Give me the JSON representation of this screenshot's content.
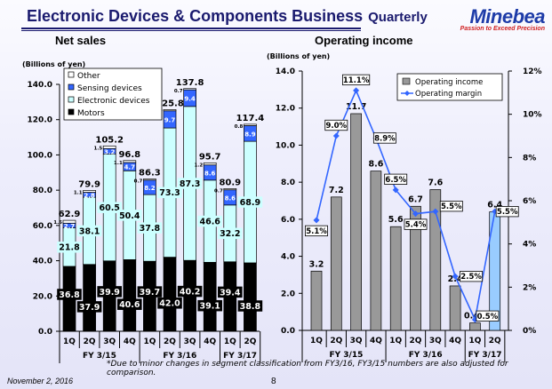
{
  "header": {
    "title": "Electronic Devices & Components Business",
    "title_suffix": "Quarterly",
    "logo_text": "Minebea",
    "logo_tagline": "Passion to Exceed Precision"
  },
  "footer": {
    "note": "*Due to minor changes in segment classification from FY3/16, FY3/15 numbers are also adjusted for comparison.",
    "date": "November 2, 2016",
    "page": "8"
  },
  "chart_data": [
    {
      "type": "bar",
      "stacked": true,
      "title": "Net sales",
      "ylabel": "(Billions of yen)",
      "ylim": [
        0,
        140
      ],
      "yticks": [
        "0.0",
        "20.0",
        "40.0",
        "60.0",
        "80.0",
        "100.0",
        "120.0",
        "140.0"
      ],
      "categories": [
        "1Q",
        "2Q",
        "3Q",
        "4Q",
        "1Q",
        "2Q",
        "3Q",
        "4Q",
        "1Q",
        "2Q"
      ],
      "groups": [
        {
          "label": "FY 3/15",
          "count": 4
        },
        {
          "label": "FY 3/16",
          "count": 4
        },
        {
          "label": "FY 3/17",
          "count": 2
        }
      ],
      "legend_placement": "top-left",
      "series": [
        {
          "name": "Motors",
          "color": "#000000",
          "values": [
            36.8,
            37.9,
            39.9,
            40.6,
            39.7,
            42.0,
            40.2,
            39.1,
            39.4,
            38.8
          ]
        },
        {
          "name": "Electronic devices",
          "color": "#ccffff",
          "values": [
            21.8,
            38.1,
            60.5,
            50.4,
            37.8,
            73.3,
            87.3,
            46.6,
            32.2,
            68.9
          ]
        },
        {
          "name": "Sensing devices",
          "color": "#3366ff",
          "values": [
            2.7,
            2.8,
            3.2,
            4.7,
            8.2,
            9.7,
            9.4,
            8.6,
            8.6,
            8.9
          ]
        },
        {
          "name": "Other",
          "color": "#ffffff",
          "values": [
            1.6,
            1.1,
            1.5,
            1.1,
            0.7,
            0.7,
            0.7,
            1.2,
            0.7,
            0.8
          ]
        }
      ],
      "totals": [
        62.9,
        79.9,
        105.2,
        96.8,
        86.3,
        125.8,
        137.8,
        95.7,
        80.9,
        117.4
      ]
    },
    {
      "type": "bar+line",
      "title": "Operating income",
      "ylabel": "(Billions of yen)",
      "ylim": [
        0,
        14
      ],
      "yticks": [
        "0.0",
        "2.0",
        "4.0",
        "6.0",
        "8.0",
        "10.0",
        "12.0",
        "14.0"
      ],
      "y2lim": [
        0,
        12
      ],
      "y2ticks": [
        "0%",
        "2%",
        "4%",
        "6%",
        "8%",
        "10%",
        "12%"
      ],
      "categories": [
        "1Q",
        "2Q",
        "3Q",
        "4Q",
        "1Q",
        "2Q",
        "3Q",
        "4Q",
        "1Q",
        "2Q"
      ],
      "groups": [
        {
          "label": "FY 3/15",
          "count": 4
        },
        {
          "label": "FY 3/16",
          "count": 4
        },
        {
          "label": "FY 3/17",
          "count": 2
        }
      ],
      "legend_placement": "top-right",
      "series": [
        {
          "name": "Operating income",
          "color": "#999999",
          "highlight_color": "#99ccff",
          "values": [
            3.2,
            7.2,
            11.7,
            8.6,
            5.6,
            6.7,
            7.6,
            2.4,
            0.4,
            6.4
          ],
          "labels": [
            "3.2",
            "7.2",
            "11.7",
            "8.6",
            "5.6",
            "6.7",
            "7.6",
            "2.4",
            "0.4",
            "6.4"
          ]
        },
        {
          "name": "Operating margin",
          "color": "#3366ff",
          "axis": "right",
          "values": [
            5.1,
            9.0,
            11.1,
            8.9,
            6.5,
            5.4,
            5.5,
            2.5,
            0.5,
            5.5
          ],
          "labels": [
            "5.1%",
            "9.0%",
            "11.1%",
            "8.9%",
            "6.5%",
            "5.4%",
            "5.5%",
            "2.5%",
            "0.5%",
            "5.5%"
          ]
        }
      ]
    }
  ]
}
